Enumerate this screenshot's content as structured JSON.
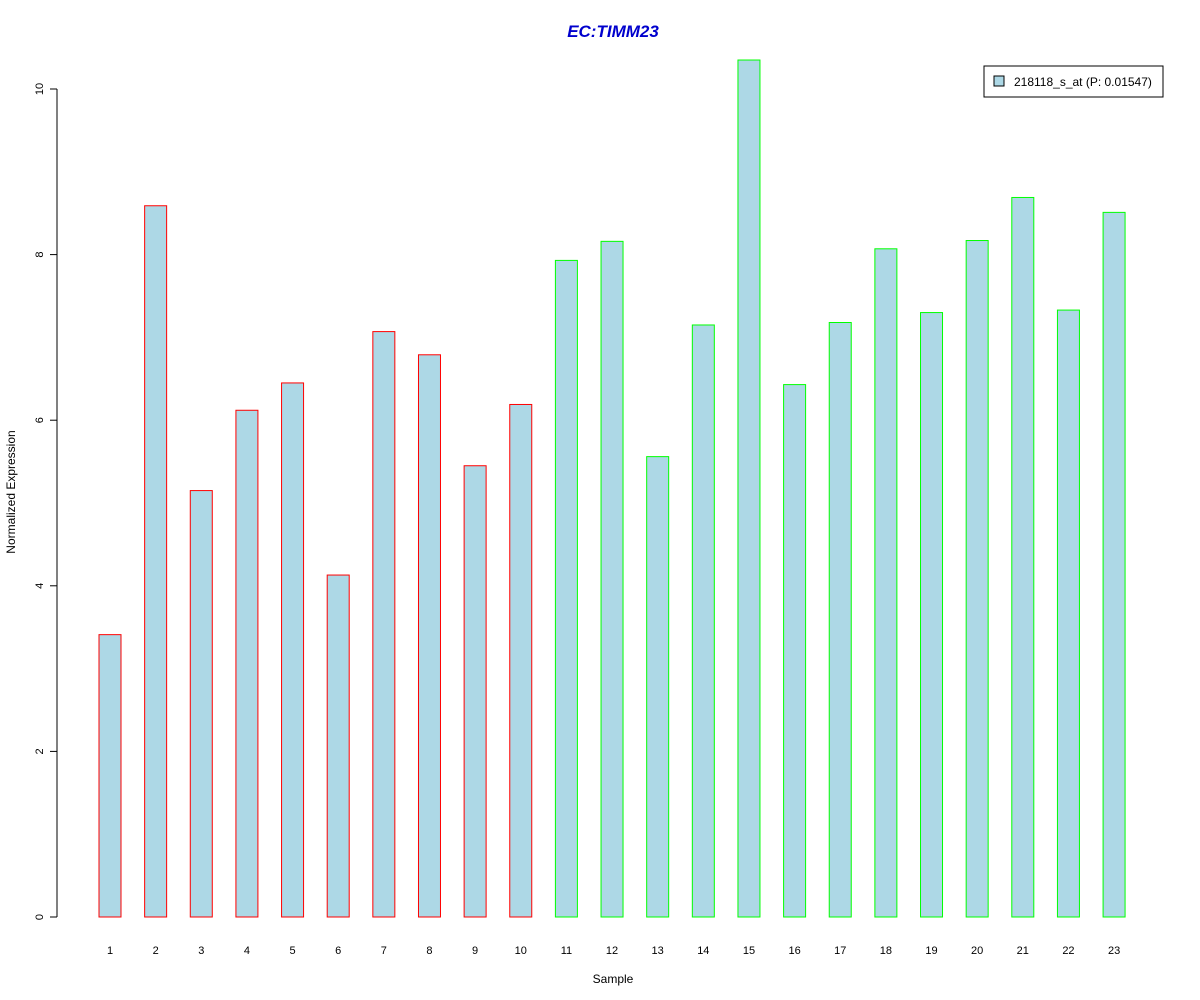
{
  "chart_data": {
    "type": "bar",
    "title": "EC:TIMM23",
    "xlabel": "Sample",
    "ylabel": "Normalized Expression",
    "ylim": [
      0,
      10.4
    ],
    "yticks": [
      0,
      2,
      4,
      6,
      8,
      10
    ],
    "grid": false,
    "legend_position": "top-right",
    "categories": [
      "1",
      "2",
      "3",
      "4",
      "5",
      "6",
      "7",
      "8",
      "9",
      "10",
      "11",
      "12",
      "13",
      "14",
      "15",
      "16",
      "17",
      "18",
      "19",
      "20",
      "21",
      "22",
      "23"
    ],
    "series": [
      {
        "name": "218118_s_at (P: 0.01547)",
        "values": [
          3.41,
          8.59,
          5.15,
          6.12,
          6.45,
          4.13,
          7.07,
          6.79,
          5.45,
          6.19,
          7.93,
          8.16,
          5.56,
          7.15,
          10.35,
          6.43,
          7.18,
          8.07,
          7.3,
          8.17,
          8.69,
          7.33,
          8.51
        ],
        "group": [
          "a",
          "a",
          "a",
          "a",
          "a",
          "a",
          "a",
          "a",
          "a",
          "a",
          "b",
          "b",
          "b",
          "b",
          "b",
          "b",
          "b",
          "b",
          "b",
          "b",
          "b",
          "b",
          "b"
        ]
      }
    ],
    "colors": {
      "bar_fill": "#add8e6",
      "group_a_border": "#ff0000",
      "group_b_border": "#00ff00",
      "title": "#0000cd",
      "axis": "#000000"
    }
  }
}
